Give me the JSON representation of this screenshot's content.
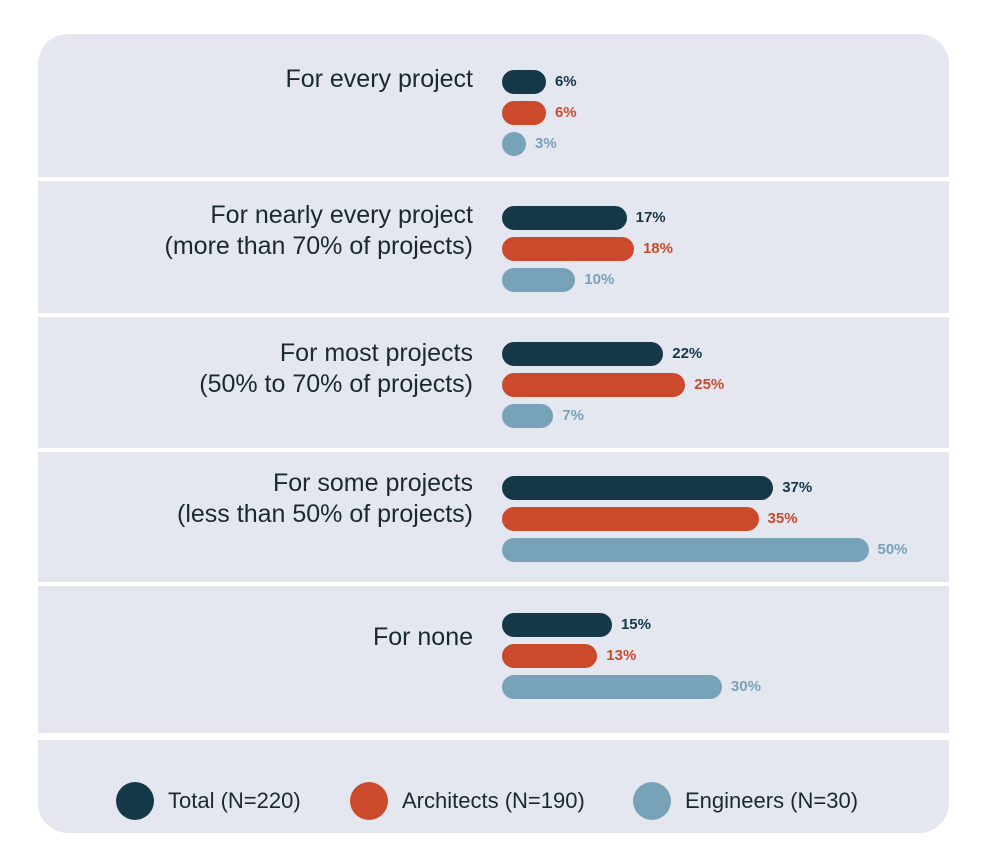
{
  "colors": {
    "total": "#143848",
    "architects": "#cb4a2c",
    "engineers": "#78a2b7"
  },
  "chart_data": {
    "type": "bar",
    "orientation": "horizontal",
    "categories": [
      "For every project",
      "For nearly every project\n(more than 70% of projects)",
      "For most projects\n(50% to 70% of projects)",
      "For some projects\n(less than 50% of projects)",
      "For none"
    ],
    "series": [
      {
        "name": "Total (N=220)",
        "values": [
          6,
          17,
          22,
          37,
          15
        ],
        "labels": [
          "6%",
          "17%",
          "22%",
          "37%",
          "15%"
        ]
      },
      {
        "name": "Architects (N=190)",
        "values": [
          6,
          18,
          25,
          35,
          13
        ],
        "labels": [
          "6%",
          "18%",
          "25%",
          "35%",
          "13%"
        ]
      },
      {
        "name": "Engineers (N=30)",
        "values": [
          3,
          10,
          7,
          50,
          30
        ],
        "labels": [
          "3%",
          "10%",
          "7%",
          "50%",
          "30%"
        ]
      }
    ],
    "legend_position": "bottom",
    "grid": false,
    "xlim": [
      0,
      50
    ]
  }
}
